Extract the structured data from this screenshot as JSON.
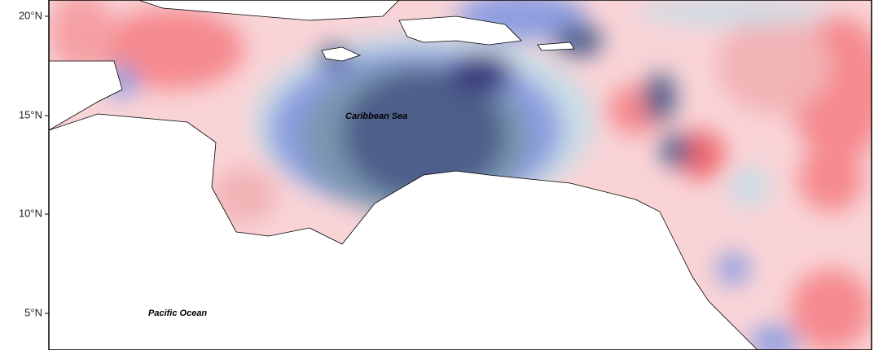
{
  "axis": {
    "yticks": [
      "20°N",
      "15°N",
      "10°N",
      "5°N"
    ]
  },
  "labels": {
    "sea": "Caribbean Sea",
    "ocean": "Pacific Ocean"
  }
}
